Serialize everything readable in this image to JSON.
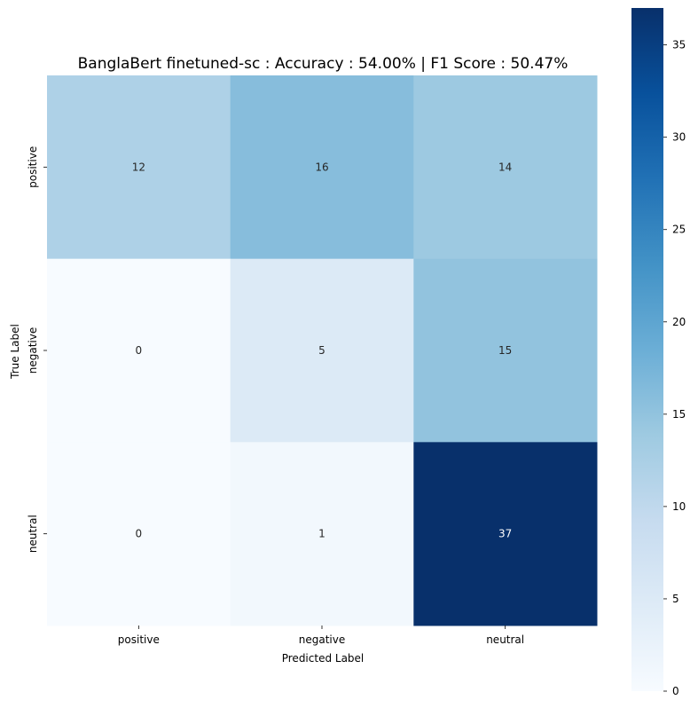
{
  "chart_data": {
    "type": "heatmap",
    "title": "BanglaBert finetuned-sc : Accuracy : 54.00% | F1 Score : 50.47%",
    "xlabel": "Predicted Label",
    "ylabel": "True Label",
    "x_categories": [
      "positive",
      "negative",
      "neutral"
    ],
    "y_categories": [
      "positive",
      "negative",
      "neutral"
    ],
    "values": [
      [
        12,
        16,
        14
      ],
      [
        0,
        5,
        15
      ],
      [
        0,
        1,
        37
      ]
    ],
    "colormap": "Blues",
    "colorbar": {
      "range": [
        0,
        37
      ],
      "ticks": [
        0,
        5,
        10,
        15,
        20,
        25,
        30,
        35
      ]
    },
    "grid": false
  }
}
